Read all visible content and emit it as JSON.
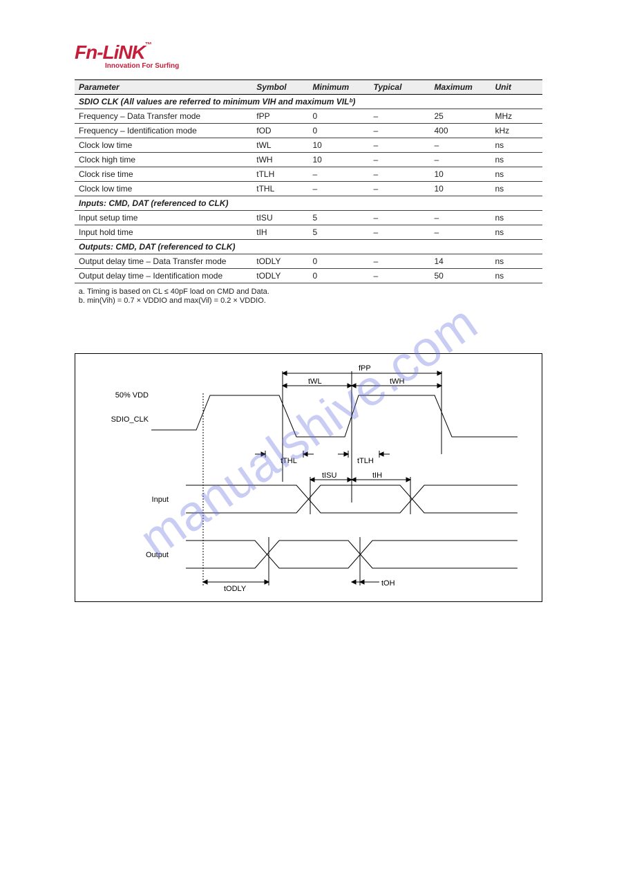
{
  "logo": {
    "brand": "Fn-LiNK",
    "tm": "™",
    "tagline": "Innovation For Surfing"
  },
  "watermark": "manualshive.com",
  "table": {
    "headers": [
      "Parameter",
      "Symbol",
      "Minimum",
      "Typical",
      "Maximum",
      "Unit"
    ],
    "sections": [
      {
        "title": "SDIO CLK (All values are referred to minimum VIH and maximum VILᵇ)",
        "rows": [
          [
            "Frequency – Data Transfer mode",
            "fPP",
            "0",
            "–",
            "25",
            "MHz"
          ],
          [
            "Frequency – Identification mode",
            "fOD",
            "0",
            "–",
            "400",
            "kHz"
          ],
          [
            "Clock low time",
            "tWL",
            "10",
            "–",
            "–",
            "ns"
          ],
          [
            "Clock high time",
            "tWH",
            "10",
            "–",
            "–",
            "ns"
          ],
          [
            "Clock rise time",
            "tTLH",
            "–",
            "–",
            "10",
            "ns"
          ],
          [
            "Clock low time",
            "tTHL",
            "–",
            "–",
            "10",
            "ns"
          ]
        ]
      },
      {
        "title": "Inputs: CMD, DAT (referenced to CLK)",
        "rows": [
          [
            "Input setup time",
            "tISU",
            "5",
            "–",
            "–",
            "ns"
          ],
          [
            "Input hold time",
            "tIH",
            "5",
            "–",
            "–",
            "ns"
          ]
        ]
      },
      {
        "title": "Outputs: CMD, DAT (referenced to CLK)",
        "rows": [
          [
            "Output delay time – Data Transfer mode",
            "tODLY",
            "0",
            "–",
            "14",
            "ns"
          ],
          [
            "Output delay time – Identification mode",
            "tODLY",
            "0",
            "–",
            "50",
            "ns"
          ]
        ]
      }
    ]
  },
  "footnotes": [
    "Timing is based on CL ≤ 40pF load on CMD and Data.",
    "min(Vih) = 0.7 × VDDIO and max(Vil) = 0.2 × VDDIO."
  ],
  "diagram": {
    "labels": {
      "vdd": "50% VDD",
      "clk": "SDIO_CLK",
      "input": "Input",
      "output": "Output",
      "fpp": "fPP",
      "twl": "tWL",
      "twh": "tWH",
      "tthl": "tTHL",
      "ttlh": "tTLH",
      "tisu": "tISU",
      "tih": "tIH",
      "todly": "tODLY",
      "toh": "tOH"
    },
    "stroke": "#000000",
    "font_size": 11
  }
}
